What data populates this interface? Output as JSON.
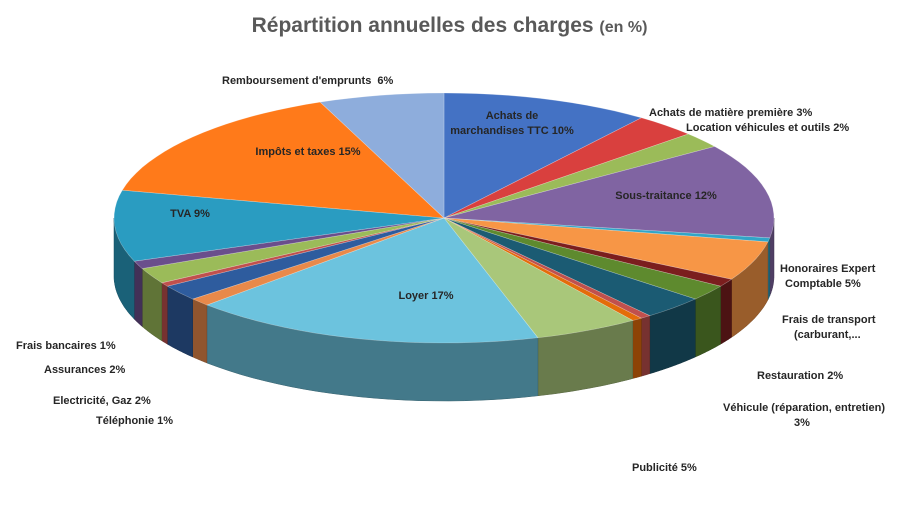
{
  "chart_data": {
    "type": "pie",
    "title": "Répartition annuelles des charges",
    "subtitle": "(en %)",
    "slices": [
      {
        "label": "Achats de marchandises TTC",
        "value": 10,
        "color": "#4472C4"
      },
      {
        "label": "Achats de matière première",
        "value": 3,
        "color": "#D9403E"
      },
      {
        "label": "Location véhicules et outils",
        "value": 2,
        "color": "#9BBB59"
      },
      {
        "label": "Sous-traitance",
        "value": 12,
        "color": "#8064A2"
      },
      {
        "label": "",
        "value": 0.5,
        "color": "#31A5C7"
      },
      {
        "label": "Honoraires Expert Comptable",
        "value": 5,
        "color": "#F79646"
      },
      {
        "label": "Frais de transport (carburant,...",
        "value": 1,
        "color": "#7B1E1E"
      },
      {
        "label": "Restauration",
        "value": 2,
        "color": "#5E8A2E"
      },
      {
        "label": "Véhicule (réparation, entretien)",
        "value": 3,
        "color": "#1B5B73"
      },
      {
        "label": "",
        "value": 0.5,
        "color": "#C0504D"
      },
      {
        "label": "",
        "value": 0.5,
        "color": "#E46C0A"
      },
      {
        "label": "Publicité",
        "value": 5,
        "color": "#A9C77A"
      },
      {
        "label": "Loyer",
        "value": 17,
        "color": "#6CC3DE"
      },
      {
        "label": "Téléphonie",
        "value": 1,
        "color": "#E8894A"
      },
      {
        "label": "Electricité, Gaz",
        "value": 2,
        "color": "#2E5C9E"
      },
      {
        "label": "",
        "value": 0.5,
        "color": "#C0504D"
      },
      {
        "label": "Assurances",
        "value": 2,
        "color": "#9BBB59"
      },
      {
        "label": "Frais bancaires",
        "value": 1,
        "color": "#6A4E8C"
      },
      {
        "label": "TVA",
        "value": 9,
        "color": "#2A9CC1"
      },
      {
        "label": "Impôts et taxes",
        "value": 15,
        "color": "#FF7A1A"
      },
      {
        "label": "Remboursement d'emprunts",
        "value": 6,
        "color": "#8EADDC"
      }
    ],
    "data_labels": [
      "Achats de",
      "marchandises TTC 10%",
      "Achats de matière première 3%",
      "Location véhicules et outils 2%",
      "Sous-traitance 12%",
      "Honoraires Expert",
      "Comptable 5%",
      "Frais de transport",
      "(carburant,...",
      "Restauration 2%",
      "Véhicule (réparation, entretien)",
      "3%",
      "Publicité 5%",
      "Loyer 17%",
      "Téléphonie 1%",
      "Electricité, Gaz 2%",
      "Assurances 2%",
      "Frais bancaires 1%",
      "TVA 9%",
      "Impôts et taxes 15%",
      "Remboursement d'emprunts  6%"
    ]
  }
}
